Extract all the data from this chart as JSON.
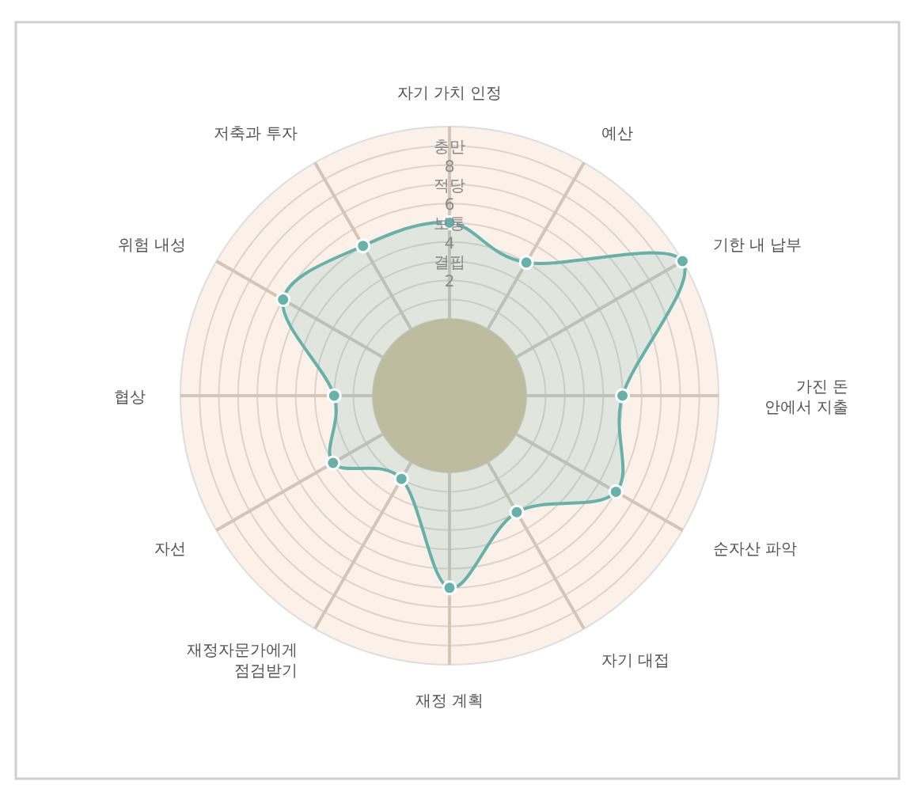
{
  "chart_data": {
    "type": "radar",
    "categories": [
      "자기 가치 인정",
      "예산",
      "기한 내 납부",
      "가진 돈\n안에서 지출",
      "순자산 파악",
      "자기 대접",
      "재정 계획",
      "재정자문가에게\n점검받기",
      "자선",
      "협상",
      "위험 내성",
      "저축과 투자"
    ],
    "series": [
      {
        "color": "#66b2aa",
        "values": [
          5,
          4,
          10,
          5,
          6,
          3,
          6,
          1,
          3,
          2,
          6,
          5
        ]
      }
    ],
    "ylim": [
      -4,
      10
    ],
    "yticks": [
      2,
      {
        "value": 3,
        "label": "결핍"
      },
      4,
      {
        "value": 5,
        "label": "보통"
      },
      6,
      {
        "value": 7,
        "label": "적당"
      },
      8,
      {
        "value": 9,
        "label": "충만"
      }
    ],
    "grid": true,
    "marker": "circle",
    "line_style": "solid"
  }
}
